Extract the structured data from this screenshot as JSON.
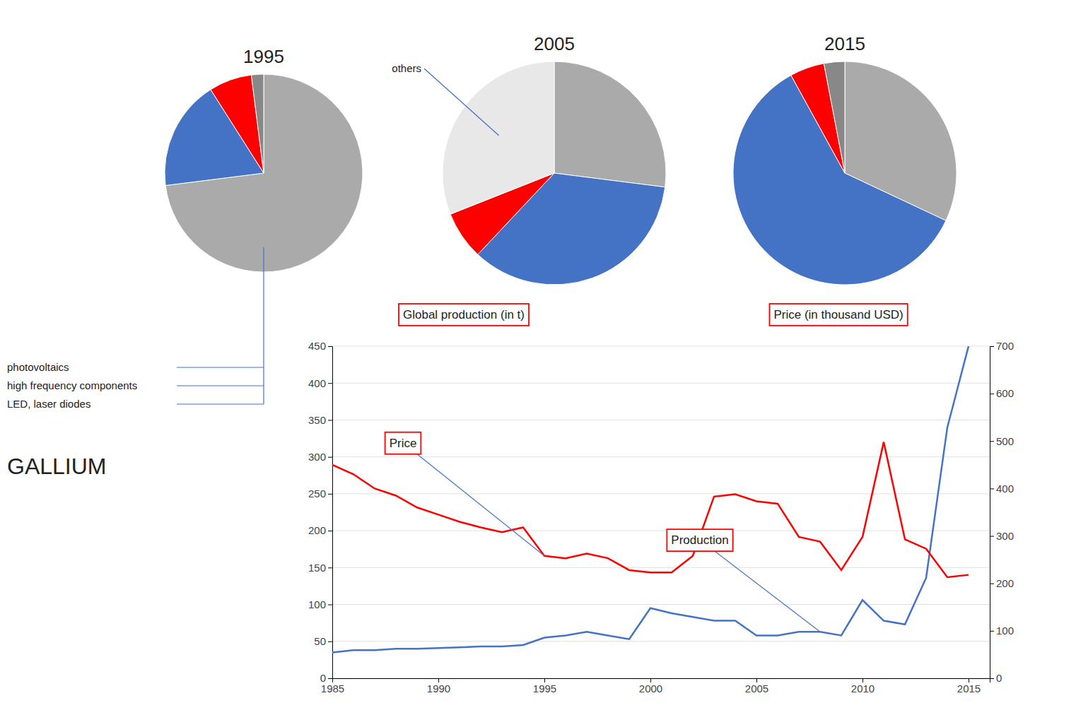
{
  "chart_data": [
    {
      "type": "pie",
      "title": "1995",
      "values": [
        73,
        18,
        7,
        2
      ],
      "colors": [
        "#AAAAAA",
        "#4472C4",
        "#FF0000",
        "#888888"
      ],
      "annotations": [
        "photovoltaics",
        "high frequency components",
        "LED, laser diodes"
      ]
    },
    {
      "type": "pie",
      "title": "2005",
      "values": [
        27,
        35,
        7,
        31
      ],
      "colors": [
        "#AAAAAA",
        "#4472C4",
        "#FF0000",
        "#E8E8E8"
      ],
      "annotations": [
        "others"
      ]
    },
    {
      "type": "pie",
      "title": "2015",
      "values": [
        32,
        60,
        5,
        3
      ],
      "colors": [
        "#AAAAAA",
        "#4472C4",
        "#FF0000",
        "#888888"
      ]
    },
    {
      "type": "line",
      "title": "GALLIUM",
      "x": [
        1985,
        1986,
        1987,
        1988,
        1989,
        1990,
        1991,
        1992,
        1993,
        1994,
        1995,
        1996,
        1997,
        1998,
        1999,
        2000,
        2001,
        2002,
        2003,
        2004,
        2005,
        2006,
        2007,
        2008,
        2009,
        2010,
        2011,
        2012,
        2013,
        2014,
        2015
      ],
      "series": [
        {
          "name": "Production",
          "color": "#4472C4",
          "values": [
            35,
            38,
            38,
            40,
            40,
            41,
            42,
            43,
            43,
            45,
            55,
            58,
            63,
            58,
            53,
            95,
            88,
            83,
            78,
            78,
            58,
            58,
            63,
            63,
            58,
            106,
            78,
            73,
            136,
            340,
            450
          ]
        },
        {
          "name": "Price",
          "color": "#FF0000",
          "axis": "y2",
          "values": [
            450,
            430,
            400,
            385,
            360,
            345,
            330,
            318,
            308,
            318,
            258,
            253,
            263,
            253,
            228,
            223,
            223,
            258,
            383,
            388,
            373,
            368,
            298,
            288,
            228,
            298,
            498,
            293,
            273,
            213,
            218
          ]
        }
      ],
      "y_label": "Global production (in t)",
      "y2_label": "Price (in thousand USD)",
      "xlim": [
        1985,
        2016
      ],
      "xticks": [
        1985,
        1990,
        1995,
        2000,
        2005,
        2010,
        2015
      ],
      "ylim": [
        0,
        450
      ],
      "yticks": [
        0,
        50,
        100,
        150,
        200,
        250,
        300,
        350,
        400,
        450
      ],
      "y2lim": [
        0,
        700
      ],
      "y2ticks": [
        0,
        100,
        200,
        300,
        400,
        500,
        600,
        700
      ],
      "grid": true
    }
  ]
}
